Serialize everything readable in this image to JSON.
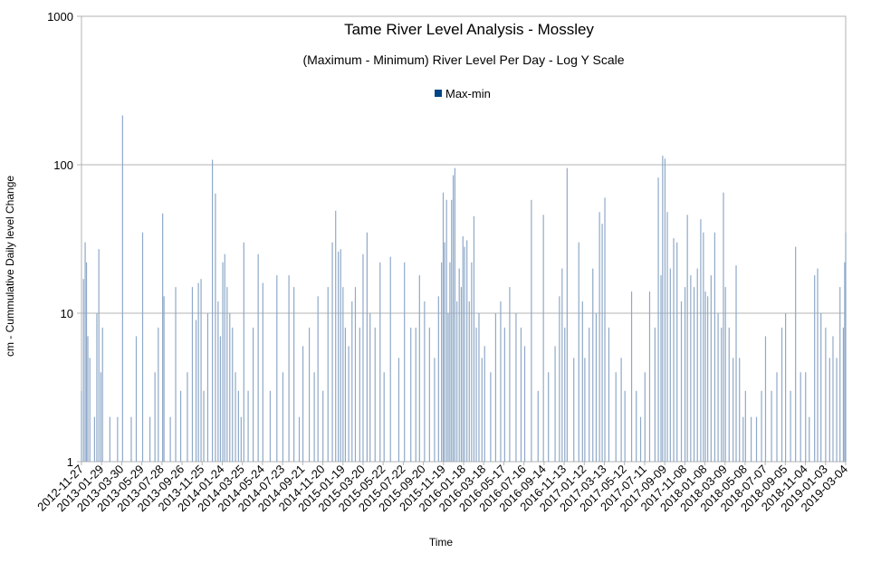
{
  "chart_data": {
    "type": "bar",
    "title": "Tame River Level Analysis - Mossley",
    "subtitle": "(Maximum - Minimum) River Level Per Day - Log Y Scale",
    "xlabel": "Time",
    "ylabel": "cm - Cummulative Daily level Change",
    "y_scale": "log",
    "ylim": [
      1,
      1000
    ],
    "y_ticks": [
      {
        "value": 1,
        "label": "1"
      },
      {
        "value": 10,
        "label": "10"
      },
      {
        "value": 100,
        "label": "100"
      },
      {
        "value": 1000,
        "label": "1000"
      }
    ],
    "grid": true,
    "legend": {
      "position": "top-center",
      "entries": [
        {
          "name": "Max-min",
          "color": "#004586"
        }
      ]
    },
    "bar_color": "#8fa9c8",
    "x_range": [
      "2012-11-27",
      "2019-03-04"
    ],
    "x_tick_labels": [
      "2012-11-27",
      "2013-01-29",
      "2013-03-30",
      "2013-05-29",
      "2013-07-28",
      "2013-09-26",
      "2013-11-25",
      "2014-01-24",
      "2014-03-25",
      "2014-05-24",
      "2014-07-23",
      "2014-09-21",
      "2014-11-20",
      "2015-01-19",
      "2015-03-20",
      "2015-05-22",
      "2015-07-22",
      "2015-09-20",
      "2015-11-19",
      "2016-01-18",
      "2016-03-18",
      "2016-05-17",
      "2016-07-16",
      "2016-09-14",
      "2016-11-13",
      "2017-01-12",
      "2017-03-13",
      "2017-05-12",
      "2017-07-11",
      "2017-09-09",
      "2017-11-08",
      "2018-01-08",
      "2018-03-09",
      "2018-05-08",
      "2018-07-07",
      "2018-09-05",
      "2018-11-04",
      "2019-01-03",
      "2019-03-04"
    ],
    "series": [
      {
        "name": "Max-min",
        "points": [
          [
            "2012-11-27",
            3
          ],
          [
            "2012-12-03",
            17
          ],
          [
            "2012-12-08",
            30
          ],
          [
            "2012-12-12",
            22
          ],
          [
            "2012-12-16",
            7
          ],
          [
            "2012-12-22",
            5
          ],
          [
            "2013-01-05",
            2
          ],
          [
            "2013-01-12",
            10
          ],
          [
            "2013-01-18",
            27
          ],
          [
            "2013-01-24",
            4
          ],
          [
            "2013-01-29",
            8
          ],
          [
            "2013-02-20",
            2
          ],
          [
            "2013-03-15",
            2
          ],
          [
            "2013-03-30",
            215
          ],
          [
            "2013-04-25",
            2
          ],
          [
            "2013-05-10",
            7
          ],
          [
            "2013-05-29",
            35
          ],
          [
            "2013-06-20",
            2
          ],
          [
            "2013-07-05",
            4
          ],
          [
            "2013-07-15",
            8
          ],
          [
            "2013-07-28",
            47
          ],
          [
            "2013-08-01",
            13
          ],
          [
            "2013-08-20",
            2
          ],
          [
            "2013-09-05",
            15
          ],
          [
            "2013-09-20",
            3
          ],
          [
            "2013-10-10",
            4
          ],
          [
            "2013-10-25",
            15
          ],
          [
            "2013-11-05",
            9
          ],
          [
            "2013-11-12",
            16
          ],
          [
            "2013-11-20",
            17
          ],
          [
            "2013-11-28",
            3
          ],
          [
            "2013-12-10",
            10
          ],
          [
            "2013-12-24",
            108
          ],
          [
            "2014-01-02",
            64
          ],
          [
            "2014-01-10",
            12
          ],
          [
            "2014-01-17",
            7
          ],
          [
            "2014-01-24",
            22
          ],
          [
            "2014-01-30",
            25
          ],
          [
            "2014-02-06",
            15
          ],
          [
            "2014-02-14",
            10
          ],
          [
            "2014-02-22",
            8
          ],
          [
            "2014-03-03",
            4
          ],
          [
            "2014-03-12",
            3
          ],
          [
            "2014-03-20",
            2
          ],
          [
            "2014-03-28",
            30
          ],
          [
            "2014-04-10",
            3
          ],
          [
            "2014-04-25",
            8
          ],
          [
            "2014-05-10",
            25
          ],
          [
            "2014-05-24",
            16
          ],
          [
            "2014-06-15",
            3
          ],
          [
            "2014-07-05",
            18
          ],
          [
            "2014-07-23",
            4
          ],
          [
            "2014-08-10",
            18
          ],
          [
            "2014-08-25",
            15
          ],
          [
            "2014-09-10",
            2
          ],
          [
            "2014-09-21",
            6
          ],
          [
            "2014-10-10",
            8
          ],
          [
            "2014-10-25",
            4
          ],
          [
            "2014-11-05",
            13
          ],
          [
            "2014-11-20",
            3
          ],
          [
            "2014-12-05",
            15
          ],
          [
            "2014-12-18",
            30
          ],
          [
            "2014-12-28",
            49
          ],
          [
            "2015-01-05",
            26
          ],
          [
            "2015-01-12",
            27
          ],
          [
            "2015-01-19",
            15
          ],
          [
            "2015-01-26",
            8
          ],
          [
            "2015-02-05",
            6
          ],
          [
            "2015-02-15",
            12
          ],
          [
            "2015-02-25",
            15
          ],
          [
            "2015-03-10",
            8
          ],
          [
            "2015-03-20",
            25
          ],
          [
            "2015-04-01",
            35
          ],
          [
            "2015-04-10",
            10
          ],
          [
            "2015-04-25",
            8
          ],
          [
            "2015-05-10",
            22
          ],
          [
            "2015-05-22",
            4
          ],
          [
            "2015-06-10",
            24
          ],
          [
            "2015-07-05",
            5
          ],
          [
            "2015-07-22",
            22
          ],
          [
            "2015-08-10",
            8
          ],
          [
            "2015-08-25",
            8
          ],
          [
            "2015-09-05",
            18
          ],
          [
            "2015-09-20",
            12
          ],
          [
            "2015-10-05",
            8
          ],
          [
            "2015-10-20",
            5
          ],
          [
            "2015-11-01",
            13
          ],
          [
            "2015-11-10",
            22
          ],
          [
            "2015-11-15",
            65
          ],
          [
            "2015-11-19",
            30
          ],
          [
            "2015-11-25",
            58
          ],
          [
            "2015-11-30",
            10
          ],
          [
            "2015-12-05",
            22
          ],
          [
            "2015-12-10",
            58
          ],
          [
            "2015-12-15",
            85
          ],
          [
            "2015-12-20",
            95
          ],
          [
            "2015-12-26",
            12
          ],
          [
            "2016-01-02",
            20
          ],
          [
            "2016-01-08",
            15
          ],
          [
            "2016-01-13",
            33
          ],
          [
            "2016-01-18",
            28
          ],
          [
            "2016-01-25",
            31
          ],
          [
            "2016-02-01",
            12
          ],
          [
            "2016-02-08",
            22
          ],
          [
            "2016-02-15",
            45
          ],
          [
            "2016-02-22",
            8
          ],
          [
            "2016-03-01",
            10
          ],
          [
            "2016-03-10",
            5
          ],
          [
            "2016-03-18",
            6
          ],
          [
            "2016-04-05",
            4
          ],
          [
            "2016-04-20",
            10
          ],
          [
            "2016-05-05",
            12
          ],
          [
            "2016-05-17",
            8
          ],
          [
            "2016-06-01",
            15
          ],
          [
            "2016-06-20",
            10
          ],
          [
            "2016-07-05",
            8
          ],
          [
            "2016-07-16",
            6
          ],
          [
            "2016-08-05",
            58
          ],
          [
            "2016-08-25",
            3
          ],
          [
            "2016-09-10",
            46
          ],
          [
            "2016-09-25",
            4
          ],
          [
            "2016-10-15",
            6
          ],
          [
            "2016-10-28",
            13
          ],
          [
            "2016-11-05",
            20
          ],
          [
            "2016-11-13",
            8
          ],
          [
            "2016-11-20",
            95
          ],
          [
            "2016-12-10",
            5
          ],
          [
            "2016-12-25",
            30
          ],
          [
            "2017-01-05",
            12
          ],
          [
            "2017-01-12",
            5
          ],
          [
            "2017-01-25",
            8
          ],
          [
            "2017-02-05",
            20
          ],
          [
            "2017-02-15",
            10
          ],
          [
            "2017-02-25",
            48
          ],
          [
            "2017-03-05",
            40
          ],
          [
            "2017-03-13",
            60
          ],
          [
            "2017-03-25",
            8
          ],
          [
            "2017-04-15",
            4
          ],
          [
            "2017-05-01",
            5
          ],
          [
            "2017-05-12",
            3
          ],
          [
            "2017-06-01",
            14
          ],
          [
            "2017-06-15",
            3
          ],
          [
            "2017-06-28",
            2
          ],
          [
            "2017-07-11",
            4
          ],
          [
            "2017-07-25",
            14
          ],
          [
            "2017-08-10",
            8
          ],
          [
            "2017-08-20",
            82
          ],
          [
            "2017-08-28",
            18
          ],
          [
            "2017-09-02",
            115
          ],
          [
            "2017-09-09",
            110
          ],
          [
            "2017-09-16",
            48
          ],
          [
            "2017-09-25",
            20
          ],
          [
            "2017-10-05",
            32
          ],
          [
            "2017-10-15",
            30
          ],
          [
            "2017-10-28",
            12
          ],
          [
            "2017-11-08",
            15
          ],
          [
            "2017-11-15",
            46
          ],
          [
            "2017-11-25",
            18
          ],
          [
            "2017-12-05",
            15
          ],
          [
            "2017-12-15",
            20
          ],
          [
            "2017-12-25",
            43
          ],
          [
            "2018-01-02",
            35
          ],
          [
            "2018-01-08",
            14
          ],
          [
            "2018-01-15",
            13
          ],
          [
            "2018-01-25",
            18
          ],
          [
            "2018-02-05",
            35
          ],
          [
            "2018-02-15",
            10
          ],
          [
            "2018-02-25",
            8
          ],
          [
            "2018-03-03",
            65
          ],
          [
            "2018-03-09",
            15
          ],
          [
            "2018-03-20",
            8
          ],
          [
            "2018-04-01",
            5
          ],
          [
            "2018-04-10",
            21
          ],
          [
            "2018-04-20",
            5
          ],
          [
            "2018-05-01",
            2
          ],
          [
            "2018-05-08",
            3
          ],
          [
            "2018-05-25",
            2
          ],
          [
            "2018-06-10",
            2
          ],
          [
            "2018-06-25",
            3
          ],
          [
            "2018-07-07",
            7
          ],
          [
            "2018-07-25",
            3
          ],
          [
            "2018-08-10",
            4
          ],
          [
            "2018-08-25",
            8
          ],
          [
            "2018-09-05",
            10
          ],
          [
            "2018-09-20",
            3
          ],
          [
            "2018-10-05",
            28
          ],
          [
            "2018-10-20",
            4
          ],
          [
            "2018-11-04",
            4
          ],
          [
            "2018-11-15",
            2
          ],
          [
            "2018-12-01",
            18
          ],
          [
            "2018-12-10",
            20
          ],
          [
            "2018-12-20",
            10
          ],
          [
            "2019-01-03",
            8
          ],
          [
            "2019-01-15",
            5
          ],
          [
            "2019-01-25",
            7
          ],
          [
            "2019-02-05",
            5
          ],
          [
            "2019-02-15",
            15
          ],
          [
            "2019-02-25",
            8
          ],
          [
            "2019-03-01",
            22
          ],
          [
            "2019-03-04",
            35
          ]
        ]
      }
    ]
  }
}
